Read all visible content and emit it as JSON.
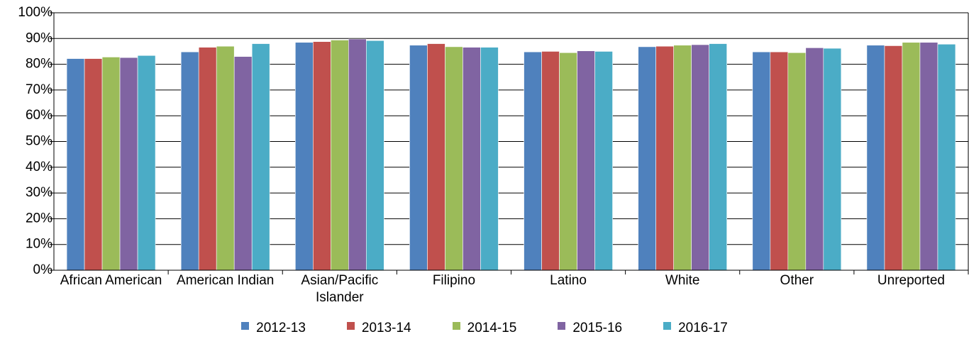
{
  "chart_data": {
    "type": "bar",
    "categories": [
      "African American",
      "American Indian",
      "Asian/Pacific Islander",
      "Filipino",
      "Latino",
      "White",
      "Other",
      "Unreported"
    ],
    "series": [
      {
        "name": "2012-13",
        "color": "#4f81bd",
        "values": [
          82.2,
          84.8,
          88.5,
          87.4,
          84.8,
          86.8,
          84.8,
          87.4
        ]
      },
      {
        "name": "2013-14",
        "color": "#c0504d",
        "values": [
          82.2,
          86.6,
          88.8,
          88.0,
          85.0,
          87.0,
          84.8,
          87.2
        ]
      },
      {
        "name": "2014-15",
        "color": "#9bbb59",
        "values": [
          82.8,
          87.0,
          89.4,
          86.8,
          84.5,
          87.4,
          84.5,
          88.5
        ]
      },
      {
        "name": "2015-16",
        "color": "#8064a2",
        "values": [
          82.6,
          83.0,
          89.8,
          86.6,
          85.2,
          87.6,
          86.4,
          88.5
        ]
      },
      {
        "name": "2016-17",
        "color": "#4bacc6",
        "values": [
          83.4,
          88.0,
          89.2,
          86.6,
          85.0,
          88.0,
          86.2,
          87.8
        ]
      }
    ],
    "ylim": [
      0,
      100
    ],
    "yticks": [
      {
        "value": 0,
        "label": "0%"
      },
      {
        "value": 10,
        "label": "10%"
      },
      {
        "value": 20,
        "label": "20%"
      },
      {
        "value": 30,
        "label": "30%"
      },
      {
        "value": 40,
        "label": "40%"
      },
      {
        "value": 50,
        "label": "50%"
      },
      {
        "value": 60,
        "label": "60%"
      },
      {
        "value": 70,
        "label": "70%"
      },
      {
        "value": 80,
        "label": "80%"
      },
      {
        "value": 90,
        "label": "90%"
      },
      {
        "value": 100,
        "label": "100%"
      }
    ],
    "grid": true,
    "legend": "bottom"
  }
}
